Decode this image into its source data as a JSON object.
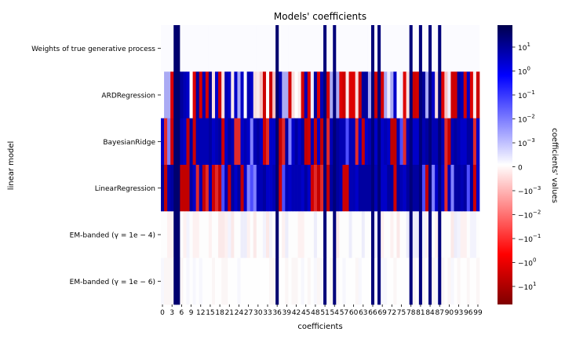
{
  "chart_data": {
    "type": "heatmap",
    "title": "Models' coefficients",
    "xlabel": "coefficients",
    "ylabel": "linear model",
    "colorbar_label": "coefficients' values",
    "colormap": "seismic_r",
    "colors": {
      "negative_extreme": "#7f0000",
      "negative": "#ff0000",
      "zero": "#ffffff",
      "positive": "#0000ff",
      "positive_extreme": "#00004c"
    },
    "scale": "symlog",
    "n_coefficients": 100,
    "x_tick_labels": [
      "0",
      "3",
      "6",
      "9",
      "12",
      "15",
      "18",
      "21",
      "24",
      "27",
      "30",
      "33",
      "36",
      "39",
      "42",
      "45",
      "48",
      "51",
      "54",
      "57",
      "60",
      "63",
      "66",
      "69",
      "72",
      "75",
      "78",
      "81",
      "84",
      "87",
      "90",
      "93",
      "96",
      "99"
    ],
    "rows": [
      "Weights of true generative process",
      "ARDRegression",
      "BayesianRidge",
      "LinearRegression",
      "EM-banded ($\\gamma = 1e-4$)",
      "EM-banded ($\\gamma = 1e-6$)"
    ],
    "row_tick_labels": [
      "Weights of true generative process",
      "ARDRegression",
      "BayesianRidge",
      "LinearRegression",
      "EM-banded (γ = 1e − 4)",
      "EM-banded (γ = 1e − 6)"
    ],
    "true_nonzero_indices": [
      4,
      5,
      36,
      51,
      54,
      66,
      68,
      78,
      81,
      84,
      87
    ],
    "colorbar_ticks": [
      "10^1",
      "10^0",
      "10^-1",
      "10^-2",
      "10^-3",
      "0",
      "-10^-3",
      "-10^-2",
      "-10^-1",
      "-10^0",
      "-10^1"
    ]
  }
}
